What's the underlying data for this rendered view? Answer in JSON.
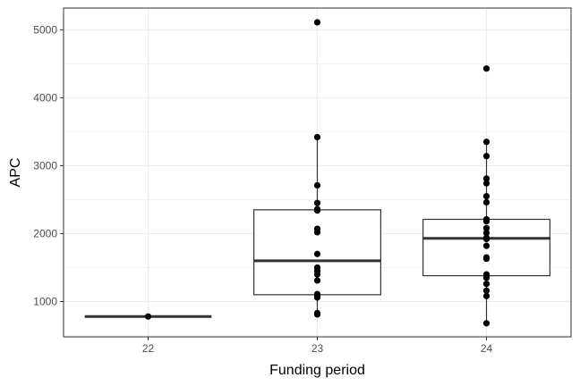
{
  "chart_data": {
    "type": "box",
    "title": "",
    "xlabel": "Funding period",
    "ylabel": "APC",
    "categories": [
      "22",
      "23",
      "24"
    ],
    "ylim": [
      480,
      5320
    ],
    "yticks": [
      1000,
      2000,
      3000,
      4000,
      5000
    ],
    "grid": true,
    "boxes": [
      {
        "category": "22",
        "q1": 780,
        "median": 780,
        "q3": 780,
        "whisker_low": 780,
        "whisker_high": 780
      },
      {
        "category": "23",
        "q1": 1100,
        "median": 1600,
        "q3": 2350,
        "whisker_low": 810,
        "whisker_high": 3420
      },
      {
        "category": "24",
        "q1": 1380,
        "median": 1930,
        "q3": 2210,
        "whisker_low": 680,
        "whisker_high": 3350
      }
    ],
    "points": [
      {
        "category": "22",
        "values": [
          780
        ]
      },
      {
        "category": "23",
        "values": [
          5110,
          3420,
          2710,
          2450,
          2360,
          2340,
          2070,
          2020,
          1700,
          1500,
          1450,
          1400,
          1310,
          1110,
          1080,
          1060,
          830,
          810
        ]
      },
      {
        "category": "24",
        "values": [
          4430,
          3350,
          3140,
          2810,
          2740,
          2550,
          2460,
          2210,
          2180,
          2080,
          2010,
          1940,
          1920,
          1820,
          1650,
          1630,
          1400,
          1380,
          1350,
          1260,
          1160,
          1080,
          680
        ]
      }
    ]
  }
}
